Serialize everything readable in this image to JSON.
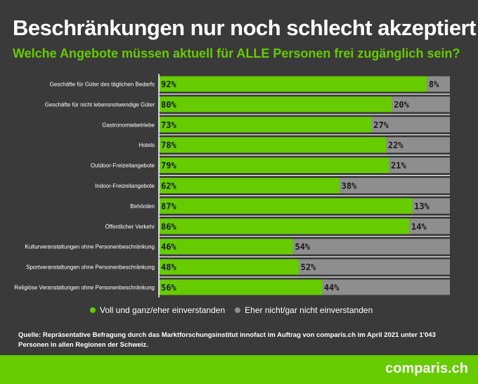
{
  "title": "Beschränkungen nur noch schlecht akzeptiert",
  "subtitle": "Welche Angebote müssen aktuell für ALLE Personen frei zugänglich sein?",
  "colors": {
    "background": "#3a3a3a",
    "agree": "#66cc00",
    "disagree": "#8e8e8e",
    "divider": "#ffffff"
  },
  "chart_data": {
    "type": "bar",
    "orientation": "horizontal",
    "stacked": true,
    "percent_stacked": true,
    "categories": [
      "Geschäfte für Güter des täglichen Bedarfs",
      "Geschäfte für nicht lebensnotwendige Güter",
      "Gastronomiebetriebe",
      "Hotels",
      "Outdoor-Freizeitangebote",
      "Indoor-Freizeitangebote",
      "Behörden",
      "Öffentlicher Verkehr",
      "Kulturveranstaltungen ohne Personenbeschränkung",
      "Sportveranstaltungen ohne Personenbeschränkung",
      "Religiöse Veranstaltungen ohne Personenbeschränkung"
    ],
    "series": [
      {
        "name": "Voll und ganz/eher einverstanden",
        "values": [
          92,
          80,
          73,
          78,
          79,
          62,
          87,
          86,
          46,
          48,
          56
        ]
      },
      {
        "name": "Eher nicht/gar nicht einverstanden",
        "values": [
          8,
          20,
          27,
          22,
          21,
          38,
          13,
          14,
          54,
          52,
          44
        ]
      }
    ],
    "xlim": [
      0,
      100
    ],
    "value_suffix": "%",
    "legend_position": "bottom"
  },
  "legend": {
    "agree": "Voll und ganz/eher einverstanden",
    "disagree": "Eher nicht/gar nicht einverstanden"
  },
  "source": "Quelle: Repräsentative Befragung durch das Marktforschungsinstitut innofact im Auftrag von comparis.ch im April 2021 unter 1'043 Personen in allen Regionen der Schweiz.",
  "logo": "comparis.ch"
}
